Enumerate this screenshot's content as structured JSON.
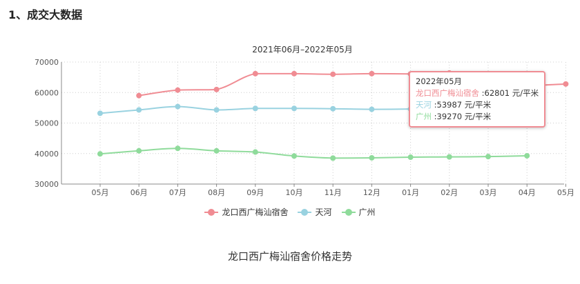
{
  "page": {
    "section_title": "1、成交大数据"
  },
  "chart_data": {
    "type": "line",
    "title": "2021年06月–2022年05月",
    "categories": [
      "05月",
      "06月",
      "07月",
      "08月",
      "09月",
      "10月",
      "11月",
      "12月",
      "01月",
      "02月",
      "03月",
      "04月",
      "05月"
    ],
    "y_ticks": [
      30000,
      40000,
      50000,
      60000,
      70000
    ],
    "ylim": [
      30000,
      70000
    ],
    "grid": true,
    "legend_position": "bottom",
    "series": [
      {
        "name": "龙口西广梅汕宿舍",
        "color": "#f08c93",
        "values": [
          null,
          59000,
          60800,
          61000,
          66200,
          66200,
          66000,
          66200,
          66100,
          66400,
          62600,
          62300,
          62801
        ]
      },
      {
        "name": "天河",
        "color": "#99d2e0",
        "values": [
          53200,
          54300,
          55400,
          54300,
          54800,
          54800,
          54700,
          54500,
          54600,
          54900,
          54600,
          53987,
          null
        ]
      },
      {
        "name": "广州",
        "color": "#8fdb9b",
        "values": [
          39900,
          40900,
          41700,
          40900,
          40500,
          39200,
          38500,
          38600,
          38800,
          38900,
          39000,
          39270,
          null
        ]
      }
    ]
  },
  "tooltip": {
    "date": "2022年05月",
    "rows": [
      {
        "name": "龙口西广梅汕宿舍",
        "value": "62801",
        "unit": "元/平米",
        "color": "#f08c93"
      },
      {
        "name": "天河",
        "value": "53987",
        "unit": "元/平米",
        "color": "#99d2e0"
      },
      {
        "name": "广州",
        "value": "39270",
        "unit": "元/平米",
        "color": "#8fdb9b"
      }
    ]
  },
  "caption": "龙口西广梅汕宿舍价格走势"
}
